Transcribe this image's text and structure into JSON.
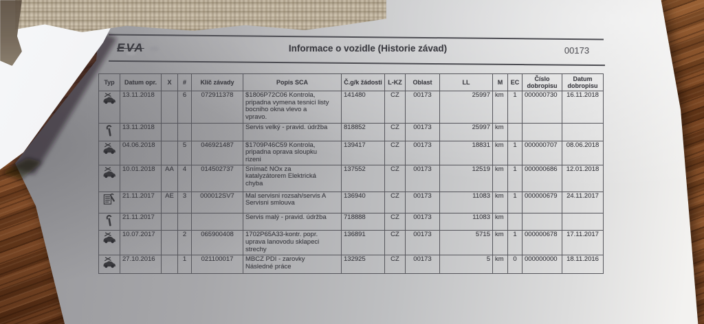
{
  "header": {
    "logo_text": "EVA",
    "title": "Informace o vozidle (Historie závad)",
    "form_number": "00173"
  },
  "colors": {
    "paper": "#d8d9db",
    "wood": "#7a4522",
    "print_text": "#3c3c42",
    "table_border": "#55555b",
    "redaction_beige": "#c2b6a2"
  },
  "table": {
    "columns": [
      "Typ",
      "Datum opr.",
      "X",
      "#",
      "Klíč závady",
      "Popis SCA",
      "Č.g/k žádosti",
      "L-KZ",
      "Oblast",
      "LL",
      "M",
      "EC",
      "Číslo dobropisu",
      "Datum dobropisu"
    ],
    "rows": [
      {
        "icon": "car-service-icon",
        "datum_opr": "13.11.2018",
        "x": "",
        "num": "6",
        "klic_zavady": "072911378",
        "popis": "$1806P72C06 Kontrola,\npripadna vymena tesnici listy\nbocniho okna vlevo a\nvpravo.",
        "zadost": "141480",
        "l_kz": "CZ",
        "oblast": "00173",
        "ll": "25997",
        "m": "km",
        "ec": "1",
        "cislo_dobropisu": "000000730",
        "datum_dobropisu": "16.11.2018"
      },
      {
        "icon": "wrench-icon",
        "datum_opr": "13.11.2018",
        "x": "",
        "num": "",
        "klic_zavady": "",
        "popis": "Servis velký - pravid. údržba",
        "zadost": "818852",
        "l_kz": "CZ",
        "oblast": "00173",
        "ll": "25997",
        "m": "km",
        "ec": "",
        "cislo_dobropisu": "",
        "datum_dobropisu": ""
      },
      {
        "icon": "car-service-icon",
        "datum_opr": "04.06.2018",
        "x": "",
        "num": "5",
        "klic_zavady": "046921487",
        "popis": "$1709P46C59 Kontrola,\npripadna oprava sloupku\nrizeni",
        "zadost": "139417",
        "l_kz": "CZ",
        "oblast": "00173",
        "ll": "18831",
        "m": "km",
        "ec": "1",
        "cislo_dobropisu": "000000707",
        "datum_dobropisu": "08.06.2018"
      },
      {
        "icon": "car-service-icon",
        "datum_opr": "10.01.2018",
        "x": "AA",
        "num": "4",
        "klic_zavady": "014502737",
        "popis": "Snímač NOx za\nkatalyzátorem Elektrická\nchyba",
        "zadost": "137552",
        "l_kz": "CZ",
        "oblast": "00173",
        "ll": "12519",
        "m": "km",
        "ec": "1",
        "cislo_dobropisu": "000000686",
        "datum_dobropisu": "12.01.2018"
      },
      {
        "icon": "contract-wrench-icon",
        "datum_opr": "21.11.2017",
        "x": "AE",
        "num": "3",
        "klic_zavady": "000012SV7",
        "popis": "Mal servisni rozsah/servis A\nServisni smlouva",
        "zadost": "136940",
        "l_kz": "CZ",
        "oblast": "00173",
        "ll": "11083",
        "m": "km",
        "ec": "1",
        "cislo_dobropisu": "000000679",
        "datum_dobropisu": "24.11.2017"
      },
      {
        "icon": "wrench-icon",
        "datum_opr": "21.11.2017",
        "x": "",
        "num": "",
        "klic_zavady": "",
        "popis": "Servis malý - pravid. údržba",
        "zadost": "718888",
        "l_kz": "CZ",
        "oblast": "00173",
        "ll": "11083",
        "m": "km",
        "ec": "",
        "cislo_dobropisu": "",
        "datum_dobropisu": ""
      },
      {
        "icon": "car-service-icon",
        "datum_opr": "10.07.2017",
        "x": "",
        "num": "2",
        "klic_zavady": "065900408",
        "popis": "1702P65A33-kontr. popr.\nuprava lanovodu sklapeci\nstrechy",
        "zadost": "136891",
        "l_kz": "CZ",
        "oblast": "00173",
        "ll": "5715",
        "m": "km",
        "ec": "1",
        "cislo_dobropisu": "000000678",
        "datum_dobropisu": "17.11.2017"
      },
      {
        "icon": "car-service-icon",
        "datum_opr": "27.10.2016",
        "x": "",
        "num": "1",
        "klic_zavady": "021100017",
        "popis": "MBCZ PDI - zarovky\nNásledné práce",
        "zadost": "132925",
        "l_kz": "CZ",
        "oblast": "00173",
        "ll": "5",
        "m": "km",
        "ec": "0",
        "cislo_dobropisu": "000000000",
        "datum_dobropisu": "18.11.2016"
      }
    ]
  }
}
